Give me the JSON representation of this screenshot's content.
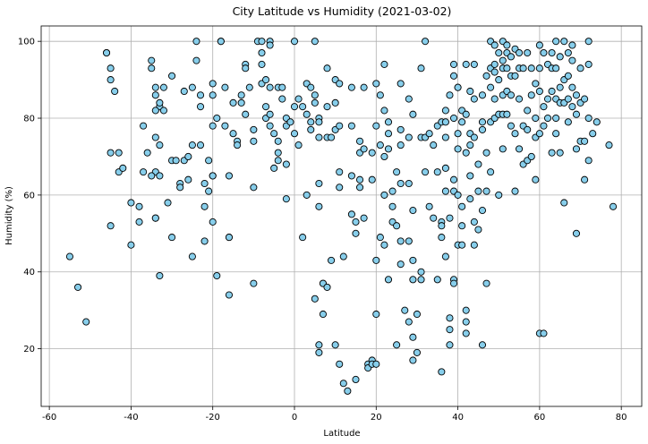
{
  "chart_data": {
    "type": "scatter",
    "title": "City Latitude vs Humidity (2021-03-02)",
    "xlabel": "Latitude",
    "ylabel": "Humidity (%)",
    "xlim": [
      -62,
      85
    ],
    "ylim": [
      5,
      104
    ],
    "xticks": [
      -60,
      -40,
      -20,
      0,
      20,
      40,
      60,
      80
    ],
    "yticks": [
      20,
      40,
      60,
      80,
      100
    ],
    "grid": true,
    "marker_fill": "#87ceeb",
    "marker_edge": "#000000",
    "points": [
      [
        -55,
        44
      ],
      [
        -53,
        36
      ],
      [
        -51,
        27
      ],
      [
        -46,
        97
      ],
      [
        -46,
        97
      ],
      [
        -45,
        93
      ],
      [
        -45,
        90
      ],
      [
        -44,
        87
      ],
      [
        -45,
        71
      ],
      [
        -45,
        52
      ],
      [
        -43,
        66
      ],
      [
        -43,
        71
      ],
      [
        -42,
        67
      ],
      [
        -40,
        58
      ],
      [
        -40,
        47
      ],
      [
        -38,
        57
      ],
      [
        -38,
        53
      ],
      [
        -37,
        78
      ],
      [
        -36,
        71
      ],
      [
        -37,
        66
      ],
      [
        -35,
        95
      ],
      [
        -35,
        93
      ],
      [
        -34,
        88
      ],
      [
        -34,
        86
      ],
      [
        -33,
        83
      ],
      [
        -34,
        82
      ],
      [
        -33,
        84
      ],
      [
        -32,
        88
      ],
      [
        -32,
        82
      ],
      [
        -34,
        75
      ],
      [
        -33,
        73
      ],
      [
        -34,
        66
      ],
      [
        -33,
        65
      ],
      [
        -35,
        65
      ],
      [
        -34,
        54
      ],
      [
        -34,
        54
      ],
      [
        -33,
        39
      ],
      [
        -31,
        58
      ],
      [
        -30,
        49
      ],
      [
        -30,
        91
      ],
      [
        -30,
        69
      ],
      [
        -29,
        69
      ],
      [
        -28,
        63
      ],
      [
        -28,
        62
      ],
      [
        -27,
        87
      ],
      [
        -27,
        69
      ],
      [
        -26,
        70
      ],
      [
        -26,
        64
      ],
      [
        -25,
        88
      ],
      [
        -25,
        73
      ],
      [
        -25,
        44
      ],
      [
        -24,
        100
      ],
      [
        -24,
        95
      ],
      [
        -23,
        86
      ],
      [
        -23,
        83
      ],
      [
        -23,
        73
      ],
      [
        -22,
        63
      ],
      [
        -22,
        57
      ],
      [
        -22,
        48
      ],
      [
        -21,
        69
      ],
      [
        -21,
        61
      ],
      [
        -20,
        89
      ],
      [
        -20,
        86
      ],
      [
        -20,
        78
      ],
      [
        -20,
        65
      ],
      [
        -20,
        65
      ],
      [
        -20,
        53
      ],
      [
        -19,
        80
      ],
      [
        -19,
        39
      ],
      [
        -18,
        100
      ],
      [
        -18,
        100
      ],
      [
        -17,
        88
      ],
      [
        -17,
        78
      ],
      [
        -16,
        65
      ],
      [
        -16,
        49
      ],
      [
        -16,
        49
      ],
      [
        -16,
        34
      ],
      [
        -15,
        84
      ],
      [
        -15,
        76
      ],
      [
        -14,
        74
      ],
      [
        -14,
        73
      ],
      [
        -13,
        86
      ],
      [
        -13,
        84
      ],
      [
        -12,
        94
      ],
      [
        -12,
        93
      ],
      [
        -12,
        81
      ],
      [
        -11,
        88
      ],
      [
        -10,
        77
      ],
      [
        -10,
        74
      ],
      [
        -10,
        62
      ],
      [
        -10,
        37
      ],
      [
        -9,
        100
      ],
      [
        -8,
        100
      ],
      [
        -8,
        97
      ],
      [
        -8,
        94
      ],
      [
        -8,
        89
      ],
      [
        -7,
        90
      ],
      [
        -7,
        83
      ],
      [
        -7,
        80
      ],
      [
        -6,
        100
      ],
      [
        -6,
        99
      ],
      [
        -6,
        88
      ],
      [
        -6,
        81
      ],
      [
        -6,
        78
      ],
      [
        -5,
        76
      ],
      [
        -5,
        67
      ],
      [
        -4,
        88
      ],
      [
        -4,
        74
      ],
      [
        -4,
        71
      ],
      [
        -4,
        69
      ],
      [
        -3,
        88
      ],
      [
        -3,
        85
      ],
      [
        -2,
        80
      ],
      [
        -2,
        78
      ],
      [
        -2,
        68
      ],
      [
        -2,
        59
      ],
      [
        -1,
        79
      ],
      [
        0,
        100
      ],
      [
        0,
        83
      ],
      [
        0,
        76
      ],
      [
        1,
        85
      ],
      [
        1,
        73
      ],
      [
        2,
        83
      ],
      [
        2,
        49
      ],
      [
        3,
        89
      ],
      [
        3,
        81
      ],
      [
        3,
        60
      ],
      [
        4,
        79
      ],
      [
        4,
        77
      ],
      [
        4,
        88
      ],
      [
        5,
        33
      ],
      [
        5,
        100
      ],
      [
        5,
        86
      ],
      [
        5,
        84
      ],
      [
        6,
        80
      ],
      [
        6,
        79
      ],
      [
        6,
        75
      ],
      [
        6,
        63
      ],
      [
        6,
        57
      ],
      [
        6,
        21
      ],
      [
        6,
        19
      ],
      [
        7,
        37
      ],
      [
        7,
        37
      ],
      [
        7,
        29
      ],
      [
        8,
        93
      ],
      [
        8,
        83
      ],
      [
        8,
        75
      ],
      [
        8,
        36
      ],
      [
        9,
        75
      ],
      [
        9,
        43
      ],
      [
        10,
        90
      ],
      [
        10,
        84
      ],
      [
        10,
        77
      ],
      [
        10,
        21
      ],
      [
        11,
        89
      ],
      [
        11,
        78
      ],
      [
        11,
        66
      ],
      [
        11,
        62
      ],
      [
        11,
        16
      ],
      [
        12,
        44
      ],
      [
        12,
        11
      ],
      [
        13,
        9
      ],
      [
        14,
        88
      ],
      [
        14,
        78
      ],
      [
        14,
        65
      ],
      [
        14,
        55
      ],
      [
        15,
        50
      ],
      [
        15,
        53
      ],
      [
        15,
        12
      ],
      [
        16,
        74
      ],
      [
        16,
        71
      ],
      [
        16,
        64
      ],
      [
        16,
        62
      ],
      [
        17,
        88
      ],
      [
        17,
        72
      ],
      [
        17,
        54
      ],
      [
        18,
        16
      ],
      [
        18,
        15
      ],
      [
        19,
        71
      ],
      [
        19,
        64
      ],
      [
        19,
        17
      ],
      [
        19,
        16
      ],
      [
        20,
        89
      ],
      [
        20,
        78
      ],
      [
        20,
        43
      ],
      [
        20,
        29
      ],
      [
        20,
        16
      ],
      [
        21,
        86
      ],
      [
        21,
        73
      ],
      [
        21,
        49
      ],
      [
        22,
        94
      ],
      [
        22,
        82
      ],
      [
        22,
        70
      ],
      [
        22,
        60
      ],
      [
        22,
        47
      ],
      [
        23,
        79
      ],
      [
        23,
        76
      ],
      [
        23,
        72
      ],
      [
        23,
        38
      ],
      [
        24,
        61
      ],
      [
        24,
        57
      ],
      [
        24,
        53
      ],
      [
        25,
        66
      ],
      [
        25,
        52
      ],
      [
        25,
        21
      ],
      [
        26,
        89
      ],
      [
        26,
        77
      ],
      [
        26,
        73
      ],
      [
        26,
        63
      ],
      [
        26,
        48
      ],
      [
        26,
        42
      ],
      [
        27,
        30
      ],
      [
        28,
        85
      ],
      [
        28,
        75
      ],
      [
        28,
        63
      ],
      [
        28,
        48
      ],
      [
        28,
        27
      ],
      [
        29,
        81
      ],
      [
        29,
        56
      ],
      [
        29,
        43
      ],
      [
        29,
        38
      ],
      [
        29,
        23
      ],
      [
        29,
        17
      ],
      [
        30,
        29
      ],
      [
        30,
        19
      ],
      [
        31,
        93
      ],
      [
        31,
        75
      ],
      [
        31,
        40
      ],
      [
        31,
        38
      ],
      [
        32,
        100
      ],
      [
        32,
        66
      ],
      [
        32,
        75
      ],
      [
        33,
        76
      ],
      [
        33,
        57
      ],
      [
        34,
        73
      ],
      [
        34,
        54
      ],
      [
        35,
        78
      ],
      [
        35,
        66
      ],
      [
        35,
        38
      ],
      [
        36,
        79
      ],
      [
        36,
        53
      ],
      [
        36,
        52
      ],
      [
        36,
        49
      ],
      [
        36,
        14
      ],
      [
        37,
        82
      ],
      [
        37,
        79
      ],
      [
        37,
        75
      ],
      [
        37,
        67
      ],
      [
        37,
        61
      ],
      [
        37,
        44
      ],
      [
        38,
        86
      ],
      [
        38,
        54
      ],
      [
        38,
        28
      ],
      [
        38,
        25
      ],
      [
        38,
        21
      ],
      [
        39,
        94
      ],
      [
        39,
        91
      ],
      [
        39,
        80
      ],
      [
        39,
        64
      ],
      [
        39,
        61
      ],
      [
        39,
        38
      ],
      [
        39,
        37
      ],
      [
        40,
        88
      ],
      [
        40,
        88
      ],
      [
        40,
        76
      ],
      [
        40,
        72
      ],
      [
        40,
        60
      ],
      [
        40,
        47
      ],
      [
        41,
        82
      ],
      [
        41,
        79
      ],
      [
        41,
        57
      ],
      [
        41,
        52
      ],
      [
        41,
        47
      ],
      [
        42,
        94
      ],
      [
        42,
        81
      ],
      [
        42,
        71
      ],
      [
        42,
        30
      ],
      [
        42,
        27
      ],
      [
        42,
        24
      ],
      [
        43,
        87
      ],
      [
        43,
        76
      ],
      [
        43,
        73
      ],
      [
        43,
        65
      ],
      [
        43,
        59
      ],
      [
        44,
        94
      ],
      [
        44,
        85
      ],
      [
        44,
        75
      ],
      [
        44,
        53
      ],
      [
        44,
        47
      ],
      [
        45,
        68
      ],
      [
        45,
        61
      ],
      [
        45,
        51
      ],
      [
        46,
        86
      ],
      [
        46,
        79
      ],
      [
        46,
        77
      ],
      [
        46,
        56
      ],
      [
        46,
        21
      ],
      [
        47,
        91
      ],
      [
        47,
        71
      ],
      [
        47,
        61
      ],
      [
        47,
        37
      ],
      [
        48,
        100
      ],
      [
        48,
        93
      ],
      [
        48,
        88
      ],
      [
        48,
        79
      ],
      [
        48,
        66
      ],
      [
        49,
        99
      ],
      [
        49,
        94
      ],
      [
        49,
        92
      ],
      [
        49,
        85
      ],
      [
        49,
        80
      ],
      [
        50,
        97
      ],
      [
        50,
        90
      ],
      [
        50,
        81
      ],
      [
        50,
        60
      ],
      [
        51,
        100
      ],
      [
        51,
        95
      ],
      [
        51,
        93
      ],
      [
        51,
        86
      ],
      [
        51,
        81
      ],
      [
        51,
        72
      ],
      [
        52,
        99
      ],
      [
        52,
        97
      ],
      [
        52,
        93
      ],
      [
        52,
        87
      ],
      [
        52,
        81
      ],
      [
        53,
        96
      ],
      [
        53,
        91
      ],
      [
        53,
        86
      ],
      [
        53,
        78
      ],
      [
        54,
        98
      ],
      [
        54,
        91
      ],
      [
        54,
        76
      ],
      [
        54,
        61
      ],
      [
        55,
        97
      ],
      [
        55,
        93
      ],
      [
        55,
        85
      ],
      [
        55,
        72
      ],
      [
        56,
        93
      ],
      [
        56,
        78
      ],
      [
        56,
        68
      ],
      [
        57,
        97
      ],
      [
        57,
        82
      ],
      [
        57,
        77
      ],
      [
        57,
        69
      ],
      [
        58,
        93
      ],
      [
        58,
        86
      ],
      [
        58,
        70
      ],
      [
        59,
        89
      ],
      [
        59,
        80
      ],
      [
        59,
        75
      ],
      [
        59,
        64
      ],
      [
        60,
        99
      ],
      [
        60,
        93
      ],
      [
        60,
        87
      ],
      [
        60,
        76
      ],
      [
        60,
        24
      ],
      [
        61,
        97
      ],
      [
        61,
        83
      ],
      [
        61,
        78
      ],
      [
        61,
        24
      ],
      [
        62,
        94
      ],
      [
        62,
        85
      ],
      [
        62,
        80
      ],
      [
        63,
        97
      ],
      [
        63,
        93
      ],
      [
        63,
        87
      ],
      [
        63,
        71
      ],
      [
        64,
        100
      ],
      [
        64,
        93
      ],
      [
        64,
        85
      ],
      [
        64,
        80
      ],
      [
        64,
        76
      ],
      [
        65,
        96
      ],
      [
        65,
        88
      ],
      [
        65,
        84
      ],
      [
        65,
        71
      ],
      [
        66,
        100
      ],
      [
        66,
        90
      ],
      [
        66,
        84
      ],
      [
        66,
        58
      ],
      [
        67,
        97
      ],
      [
        67,
        91
      ],
      [
        67,
        85
      ],
      [
        67,
        79
      ],
      [
        68,
        99
      ],
      [
        68,
        95
      ],
      [
        68,
        88
      ],
      [
        68,
        83
      ],
      [
        69,
        86
      ],
      [
        69,
        81
      ],
      [
        69,
        72
      ],
      [
        69,
        50
      ],
      [
        70,
        93
      ],
      [
        70,
        84
      ],
      [
        70,
        74
      ],
      [
        71,
        85
      ],
      [
        71,
        74
      ],
      [
        71,
        64
      ],
      [
        72,
        100
      ],
      [
        72,
        94
      ],
      [
        72,
        80
      ],
      [
        72,
        69
      ],
      [
        73,
        76
      ],
      [
        74,
        79
      ],
      [
        77,
        73
      ],
      [
        78,
        57
      ]
    ]
  }
}
